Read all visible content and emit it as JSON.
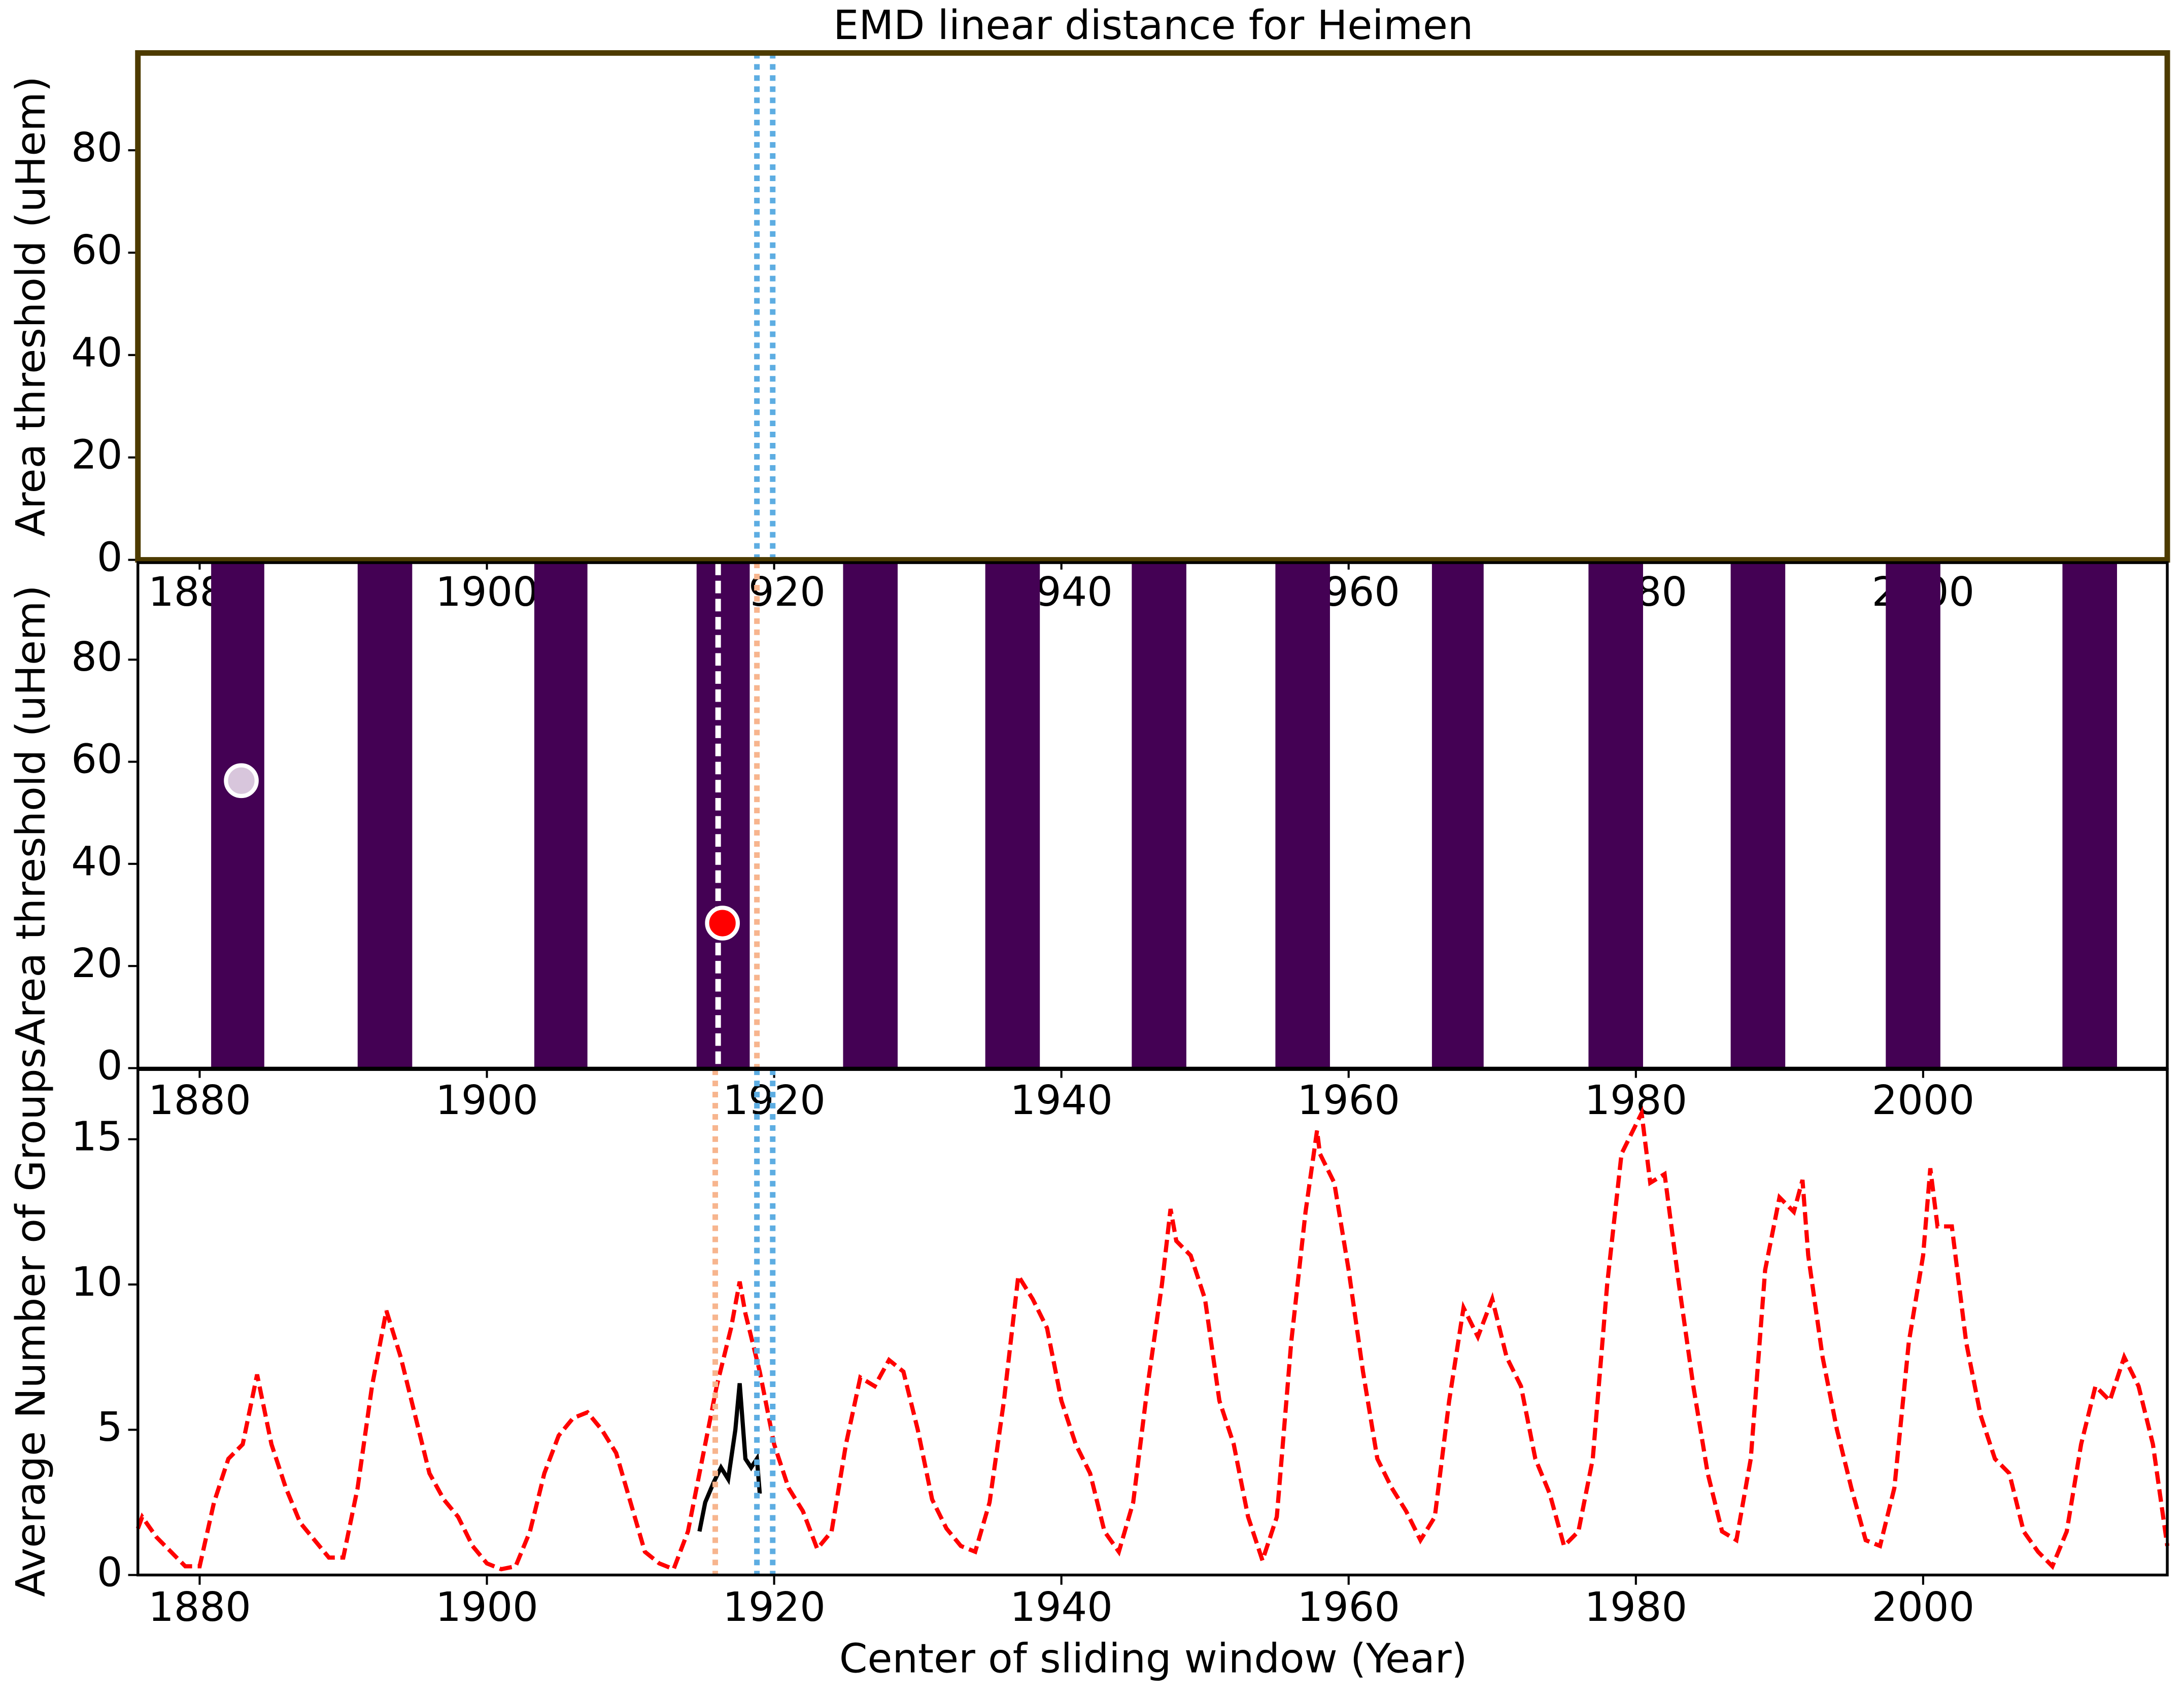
{
  "chart_data": [
    {
      "type": "scatter",
      "title": "EMD linear distance for Heimen",
      "ylabel": "Area threshold (uHem)",
      "xlim": [
        1875.7,
        2017
      ],
      "ylim": [
        0,
        99
      ],
      "xticks": [
        1880,
        1900,
        1920,
        1940,
        1960,
        1980,
        2000
      ],
      "yticks": [
        0,
        20,
        40,
        60,
        80
      ],
      "frame_color": "#4d3b00",
      "vlines": [
        {
          "x": 1918.8,
          "color": "#5dade2",
          "style": "dotted"
        },
        {
          "x": 1919.9,
          "color": "#5dade2",
          "style": "dotted"
        }
      ]
    },
    {
      "type": "scatter",
      "ylabel": "Area threshold (uHem)",
      "xlim": [
        1875.7,
        2017
      ],
      "ylim": [
        0,
        99
      ],
      "xticks": [
        1880,
        1900,
        1920,
        1940,
        1960,
        1980,
        2000
      ],
      "yticks": [
        0,
        20,
        40,
        60,
        80
      ],
      "frame_color": "#000000",
      "bands": {
        "color": "#440154",
        "edges": [
          [
            1880.8,
            1884.5
          ],
          [
            1891.0,
            1894.8
          ],
          [
            1903.3,
            1907.0
          ],
          [
            1914.6,
            1918.3
          ],
          [
            1924.8,
            1928.6
          ],
          [
            1934.7,
            1938.5
          ],
          [
            1944.9,
            1948.7
          ],
          [
            1954.9,
            1958.7
          ],
          [
            1965.8,
            1969.4
          ],
          [
            1976.7,
            1980.5
          ],
          [
            1986.6,
            1990.4
          ],
          [
            1997.4,
            2001.2
          ],
          [
            2009.7,
            2013.5
          ]
        ]
      },
      "series": [
        {
          "x": [
            1882.9
          ],
          "values": [
            56.3
          ],
          "color": "#d8c6dc"
        },
        {
          "x": [
            1916.4
          ],
          "values": [
            28.4
          ],
          "color": "#ff0000"
        }
      ],
      "vlines": [
        {
          "x": 1916.1,
          "color": "#ffffff",
          "style": "dashed"
        },
        {
          "x": 1918.8,
          "color": "#f7b58e",
          "style": "dotted"
        }
      ]
    },
    {
      "type": "line",
      "xlabel": "Center of sliding window (Year)",
      "ylabel": "Average Number of Groups",
      "xlim": [
        1875.7,
        2017
      ],
      "ylim": [
        0,
        17.4
      ],
      "xticks": [
        1880,
        1900,
        1920,
        1940,
        1960,
        1980,
        2000
      ],
      "yticks": [
        0,
        5,
        10,
        15
      ],
      "frame_color": "#000000",
      "series": [
        {
          "color": "#ff0000",
          "style": "dashed",
          "x": [
            1875.7,
            1876,
            1877,
            1878,
            1879,
            1880,
            1881,
            1882,
            1883,
            1884,
            1885,
            1886,
            1887,
            1888,
            1889,
            1890,
            1891,
            1892,
            1893,
            1894,
            1895,
            1896,
            1897,
            1898,
            1899,
            1900,
            1901,
            1902,
            1903,
            1904,
            1905,
            1906,
            1907,
            1908,
            1909,
            1910,
            1911,
            1912,
            1913,
            1914,
            1915,
            1916,
            1917,
            1917.6,
            1918,
            1919,
            1920,
            1921,
            1922,
            1923,
            1924,
            1925,
            1926,
            1927,
            1928,
            1929,
            1930,
            1931,
            1932,
            1933,
            1934,
            1935,
            1936,
            1937,
            1938,
            1939,
            1940,
            1941,
            1942,
            1943,
            1944,
            1945,
            1946,
            1947,
            1947.6,
            1948,
            1949,
            1950,
            1951,
            1952,
            1953,
            1954,
            1955,
            1956,
            1957,
            1957.8,
            1958,
            1959,
            1960,
            1961,
            1962,
            1963,
            1964,
            1965,
            1966,
            1967,
            1968,
            1969,
            1970,
            1971,
            1972,
            1973,
            1974,
            1975,
            1976,
            1977,
            1978,
            1979,
            1980.4,
            1981,
            1982,
            1983,
            1984,
            1985,
            1986,
            1987,
            1988,
            1989,
            1990,
            1991,
            1991.6,
            1992,
            1993,
            1994,
            1995,
            1996,
            1997,
            1998,
            1999,
            2000,
            2000.5,
            2001,
            2002,
            2003,
            2004,
            2005,
            2006,
            2007,
            2008,
            2009,
            2010,
            2011,
            2012,
            2013,
            2014,
            2015,
            2016,
            2017
          ],
          "values": [
            1.6,
            2.0,
            1.3,
            0.8,
            0.3,
            0.3,
            2.5,
            4.0,
            4.5,
            6.9,
            4.5,
            3.0,
            1.8,
            1.2,
            0.6,
            0.6,
            3.0,
            6.5,
            9.1,
            7.5,
            5.5,
            3.5,
            2.6,
            2.0,
            1.0,
            0.4,
            0.2,
            0.3,
            1.5,
            3.5,
            4.8,
            5.4,
            5.6,
            5.0,
            4.2,
            2.5,
            0.8,
            0.4,
            0.2,
            1.5,
            4.0,
            6.5,
            8.5,
            10.1,
            9.0,
            7.0,
            4.5,
            3.0,
            2.2,
            0.9,
            1.5,
            4.5,
            6.8,
            6.5,
            7.4,
            7.0,
            5.0,
            2.6,
            1.6,
            1.0,
            0.8,
            2.5,
            6.0,
            10.3,
            9.5,
            8.5,
            6.0,
            4.5,
            3.5,
            1.5,
            0.8,
            2.5,
            6.5,
            10.0,
            12.6,
            11.5,
            11.0,
            9.5,
            6.0,
            4.5,
            2.0,
            0.5,
            2.0,
            8.0,
            12.5,
            15.3,
            14.5,
            13.5,
            10.5,
            7.0,
            4.0,
            3.0,
            2.2,
            1.2,
            2.0,
            6.0,
            9.2,
            8.2,
            9.5,
            7.5,
            6.5,
            4.0,
            2.8,
            1.0,
            1.5,
            4.0,
            10.0,
            14.5,
            15.9,
            13.5,
            13.8,
            10.0,
            6.5,
            3.5,
            1.5,
            1.2,
            4.0,
            10.5,
            13.0,
            12.5,
            13.6,
            11.0,
            7.5,
            5.0,
            3.0,
            1.2,
            1.0,
            3.0,
            8.0,
            11.0,
            14.0,
            12.0,
            12.0,
            8.0,
            5.5,
            4.0,
            3.5,
            1.5,
            0.8,
            0.3,
            1.5,
            4.5,
            6.5,
            6.0,
            7.5,
            6.5,
            4.5,
            1.0
          ]
        },
        {
          "color": "#000000",
          "style": "solid",
          "x": [
            1914.8,
            1915.2,
            1915.8,
            1916.3,
            1916.8,
            1917.3,
            1917.6,
            1918,
            1918.4,
            1918.8,
            1919
          ],
          "values": [
            1.5,
            2.5,
            3.2,
            3.7,
            3.3,
            5.0,
            6.6,
            4.0,
            3.7,
            4.0,
            2.8
          ]
        }
      ],
      "vlines": [
        {
          "x": 1915.9,
          "color": "#f7b58e",
          "style": "dotted"
        },
        {
          "x": 1918.8,
          "color": "#5dade2",
          "style": "dotted"
        },
        {
          "x": 1919.9,
          "color": "#5dade2",
          "style": "dotted"
        }
      ]
    }
  ]
}
